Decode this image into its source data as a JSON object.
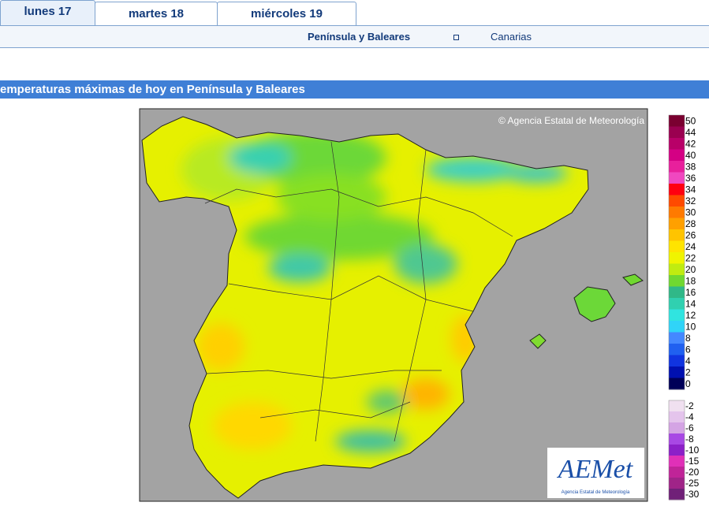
{
  "tabs": [
    {
      "label": "lunes 17",
      "active": true
    },
    {
      "label": "martes 18",
      "active": false
    },
    {
      "label": "miércoles 19",
      "active": false
    }
  ],
  "subnav": {
    "peninsula": "Península y Baleares",
    "canarias": "Canarias"
  },
  "section_title": "emperaturas máximas de hoy en Península y Baleares",
  "map": {
    "copyright": "© Agencia Estatal de Meteorología",
    "logo": "AEMet",
    "logo_caption": "Agencia Estatal de Meteorología"
  },
  "legend": {
    "warm": [
      {
        "label": 50,
        "color": "#7a0030"
      },
      {
        "label": 44,
        "color": "#9a0050"
      },
      {
        "label": 42,
        "color": "#b80068"
      },
      {
        "label": 40,
        "color": "#d40084"
      },
      {
        "label": 38,
        "color": "#e8209c"
      },
      {
        "label": 36,
        "color": "#f048c0"
      },
      {
        "label": 34,
        "color": "#ff0010"
      },
      {
        "label": 32,
        "color": "#ff4a00"
      },
      {
        "label": 30,
        "color": "#ff7a00"
      },
      {
        "label": 28,
        "color": "#ffa000"
      },
      {
        "label": 26,
        "color": "#ffc400"
      },
      {
        "label": 24,
        "color": "#ffe400"
      },
      {
        "label": 22,
        "color": "#f0f400"
      },
      {
        "label": 20,
        "color": "#c0ec10"
      },
      {
        "label": 18,
        "color": "#70d830"
      },
      {
        "label": 16,
        "color": "#30b888"
      },
      {
        "label": 14,
        "color": "#30d0b0"
      },
      {
        "label": 12,
        "color": "#30e4e0"
      },
      {
        "label": 10,
        "color": "#30d4f8"
      },
      {
        "label": 8,
        "color": "#4488ff"
      },
      {
        "label": 6,
        "color": "#2060f0"
      },
      {
        "label": 4,
        "color": "#1034e0"
      },
      {
        "label": 2,
        "color": "#0010b0"
      },
      {
        "label": 0,
        "color": "#000058"
      }
    ],
    "cold": [
      {
        "label": -2,
        "color": "#f0e0f0"
      },
      {
        "label": -4,
        "color": "#e4c4ec"
      },
      {
        "label": -6,
        "color": "#d4a4e4"
      },
      {
        "label": -8,
        "color": "#a848e4"
      },
      {
        "label": -10,
        "color": "#8c20c8"
      },
      {
        "label": -15,
        "color": "#e030b8"
      },
      {
        "label": -20,
        "color": "#c02498"
      },
      {
        "label": -25,
        "color": "#a02488"
      },
      {
        "label": -30,
        "color": "#702078"
      }
    ]
  }
}
